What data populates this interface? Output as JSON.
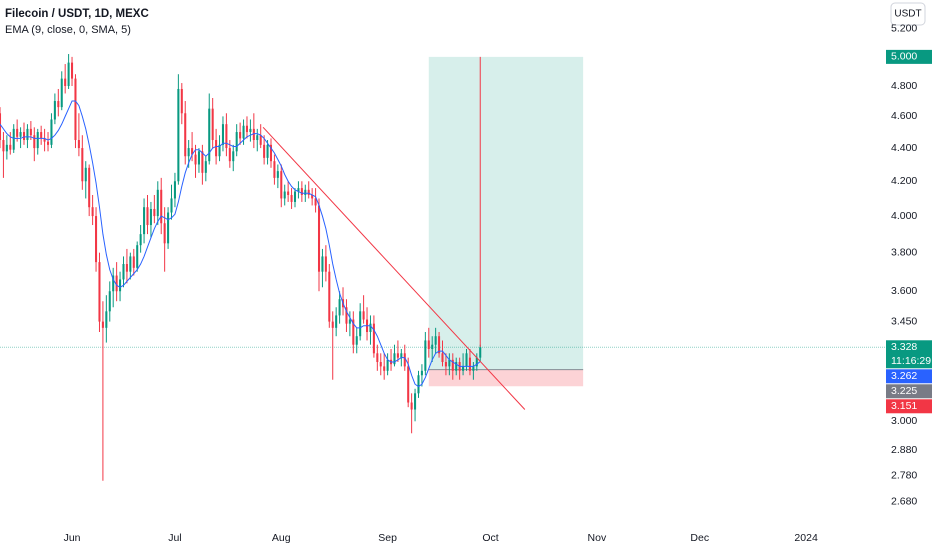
{
  "chart_data": {
    "type": "candlestick",
    "title": "Filecoin / USDT, 1D, MEXC",
    "indicator": "EMA (9, close, 0, SMA, 5)",
    "currency": "USDT",
    "countdown": "11:16:29",
    "log": true,
    "grid": false,
    "up_color": "#089981",
    "down_color": "#f23645",
    "ema_color": "#2962ff",
    "xlim": [
      0,
      258
    ],
    "xticks": [
      {
        "value": 21,
        "label": "Jun"
      },
      {
        "value": 51,
        "label": "Jul"
      },
      {
        "value": 82,
        "label": "Aug"
      },
      {
        "value": 113,
        "label": "Sep"
      },
      {
        "value": 143,
        "label": "Oct"
      },
      {
        "value": 174,
        "label": "Nov"
      },
      {
        "value": 204,
        "label": "Dec"
      },
      {
        "value": 235,
        "label": "2024"
      }
    ],
    "ylim": [
      2.576,
      5.415
    ],
    "yticks": [
      {
        "value": 5.2,
        "label": "5.200"
      },
      {
        "value": 4.8,
        "label": "4.800"
      },
      {
        "value": 4.6,
        "label": "4.600"
      },
      {
        "value": 4.4,
        "label": "4.400"
      },
      {
        "value": 4.2,
        "label": "4.200"
      },
      {
        "value": 4,
        "label": "4.000"
      },
      {
        "value": 3.8,
        "label": "3.800"
      },
      {
        "value": 3.6,
        "label": "3.600"
      },
      {
        "value": 3.45,
        "label": "3.450"
      },
      {
        "value": 3,
        "label": "3.000"
      },
      {
        "value": 2.88,
        "label": "2.880"
      },
      {
        "value": 2.78,
        "label": "2.780"
      },
      {
        "value": 2.68,
        "label": "2.680"
      }
    ],
    "candles": [
      [
        4.62,
        4.66,
        4.4,
        4.45
      ],
      [
        4.45,
        4.5,
        4.22,
        4.38
      ],
      [
        4.38,
        4.48,
        4.33,
        4.42
      ],
      [
        4.42,
        4.5,
        4.36,
        4.39
      ],
      [
        4.39,
        4.55,
        4.37,
        4.52
      ],
      [
        4.52,
        4.58,
        4.44,
        4.47
      ],
      [
        4.47,
        4.53,
        4.4,
        4.5
      ],
      [
        4.5,
        4.56,
        4.42,
        4.45
      ],
      [
        4.45,
        4.55,
        4.4,
        4.52
      ],
      [
        4.52,
        4.57,
        4.45,
        4.48
      ],
      [
        4.48,
        4.53,
        4.32,
        4.4
      ],
      [
        4.4,
        4.52,
        4.36,
        4.5
      ],
      [
        4.5,
        4.54,
        4.42,
        4.46
      ],
      [
        4.46,
        4.52,
        4.38,
        4.44
      ],
      [
        4.44,
        4.5,
        4.38,
        4.42
      ],
      [
        4.42,
        4.62,
        4.4,
        4.58
      ],
      [
        4.58,
        4.75,
        4.55,
        4.7
      ],
      [
        4.7,
        4.78,
        4.6,
        4.66
      ],
      [
        4.66,
        4.9,
        4.64,
        4.85
      ],
      [
        4.85,
        4.95,
        4.75,
        4.8
      ],
      [
        4.8,
        5.02,
        4.78,
        4.96
      ],
      [
        4.96,
        5.0,
        4.8,
        4.85
      ],
      [
        4.85,
        4.88,
        4.4,
        4.45
      ],
      [
        4.45,
        4.62,
        4.35,
        4.4
      ],
      [
        4.4,
        4.48,
        4.15,
        4.2
      ],
      [
        4.2,
        4.32,
        4.1,
        4.28
      ],
      [
        4.28,
        4.3,
        4.0,
        4.05
      ],
      [
        4.05,
        4.12,
        3.95,
        4.0
      ],
      [
        4.0,
        4.05,
        3.7,
        3.75
      ],
      [
        3.75,
        3.8,
        3.4,
        3.45
      ],
      [
        3.45,
        3.55,
        2.76,
        3.42
      ],
      [
        3.42,
        3.58,
        3.35,
        3.5
      ],
      [
        3.5,
        3.65,
        3.45,
        3.6
      ],
      [
        3.6,
        3.72,
        3.52,
        3.68
      ],
      [
        3.68,
        3.75,
        3.55,
        3.6
      ],
      [
        3.6,
        3.7,
        3.55,
        3.66
      ],
      [
        3.66,
        3.78,
        3.62,
        3.74
      ],
      [
        3.74,
        3.82,
        3.64,
        3.7
      ],
      [
        3.7,
        3.8,
        3.66,
        3.78
      ],
      [
        3.78,
        3.82,
        3.68,
        3.72
      ],
      [
        3.72,
        3.86,
        3.7,
        3.84
      ],
      [
        3.84,
        3.95,
        3.8,
        3.9
      ],
      [
        3.9,
        4.1,
        3.85,
        4.05
      ],
      [
        4.05,
        4.12,
        3.9,
        3.95
      ],
      [
        3.95,
        4.08,
        3.88,
        4.04
      ],
      [
        4.04,
        4.12,
        3.96,
        4.0
      ],
      [
        4.0,
        4.2,
        3.95,
        4.15
      ],
      [
        4.15,
        4.22,
        3.9,
        3.96
      ],
      [
        3.96,
        4.05,
        3.7,
        3.85
      ],
      [
        3.85,
        4.05,
        3.82,
        4.02
      ],
      [
        4.02,
        4.18,
        3.98,
        4.1
      ],
      [
        4.1,
        4.25,
        4.05,
        4.2
      ],
      [
        4.2,
        4.88,
        4.18,
        4.78
      ],
      [
        4.78,
        4.82,
        4.55,
        4.62
      ],
      [
        4.62,
        4.7,
        4.3,
        4.35
      ],
      [
        4.35,
        4.45,
        4.28,
        4.4
      ],
      [
        4.4,
        4.5,
        4.32,
        4.36
      ],
      [
        4.36,
        4.42,
        4.22,
        4.3
      ],
      [
        4.3,
        4.4,
        4.25,
        4.38
      ],
      [
        4.38,
        4.42,
        4.18,
        4.25
      ],
      [
        4.25,
        4.35,
        4.2,
        4.32
      ],
      [
        4.32,
        4.75,
        4.3,
        4.65
      ],
      [
        4.65,
        4.72,
        4.4,
        4.45
      ],
      [
        4.45,
        4.52,
        4.3,
        4.35
      ],
      [
        4.35,
        4.48,
        4.32,
        4.42
      ],
      [
        4.42,
        4.6,
        4.38,
        4.55
      ],
      [
        4.55,
        4.62,
        4.35,
        4.4
      ],
      [
        4.4,
        4.45,
        4.28,
        4.32
      ],
      [
        4.32,
        4.42,
        4.26,
        4.38
      ],
      [
        4.38,
        4.55,
        4.35,
        4.5
      ],
      [
        4.5,
        4.56,
        4.42,
        4.46
      ],
      [
        4.46,
        4.58,
        4.42,
        4.54
      ],
      [
        4.54,
        4.6,
        4.46,
        4.5
      ],
      [
        4.5,
        4.58,
        4.44,
        4.52
      ],
      [
        4.52,
        4.62,
        4.4,
        4.45
      ],
      [
        4.45,
        4.52,
        4.38,
        4.48
      ],
      [
        4.48,
        4.55,
        4.4,
        4.42
      ],
      [
        4.42,
        4.48,
        4.3,
        4.34
      ],
      [
        4.34,
        4.45,
        4.3,
        4.42
      ],
      [
        4.42,
        4.46,
        4.28,
        4.32
      ],
      [
        4.32,
        4.36,
        4.18,
        4.22
      ],
      [
        4.22,
        4.3,
        4.16,
        4.26
      ],
      [
        4.26,
        4.3,
        4.05,
        4.1
      ],
      [
        4.1,
        4.18,
        4.06,
        4.14
      ],
      [
        4.14,
        4.2,
        4.08,
        4.12
      ],
      [
        4.12,
        4.16,
        4.04,
        4.08
      ],
      [
        4.08,
        4.16,
        4.05,
        4.14
      ],
      [
        4.14,
        4.2,
        4.1,
        4.16
      ],
      [
        4.16,
        4.2,
        4.08,
        4.12
      ],
      [
        4.12,
        4.18,
        4.08,
        4.15
      ],
      [
        4.15,
        4.2,
        4.1,
        4.12
      ],
      [
        4.12,
        4.16,
        4.06,
        4.1
      ],
      [
        4.1,
        4.16,
        4.02,
        4.06
      ],
      [
        4.06,
        4.1,
        3.6,
        3.7
      ],
      [
        3.7,
        3.82,
        3.62,
        3.78
      ],
      [
        3.78,
        3.84,
        3.65,
        3.7
      ],
      [
        3.7,
        3.74,
        3.42,
        3.45
      ],
      [
        3.45,
        3.5,
        3.18,
        3.42
      ],
      [
        3.42,
        3.52,
        3.38,
        3.48
      ],
      [
        3.48,
        3.6,
        3.44,
        3.56
      ],
      [
        3.56,
        3.62,
        3.48,
        3.52
      ],
      [
        3.52,
        3.56,
        3.4,
        3.44
      ],
      [
        3.44,
        3.5,
        3.38,
        3.46
      ],
      [
        3.46,
        3.5,
        3.3,
        3.34
      ],
      [
        3.34,
        3.42,
        3.3,
        3.38
      ],
      [
        3.38,
        3.54,
        3.36,
        3.5
      ],
      [
        3.5,
        3.58,
        3.44,
        3.46
      ],
      [
        3.46,
        3.52,
        3.36,
        3.4
      ],
      [
        3.4,
        3.48,
        3.34,
        3.44
      ],
      [
        3.44,
        3.48,
        3.28,
        3.3
      ],
      [
        3.3,
        3.34,
        3.22,
        3.26
      ],
      [
        3.26,
        3.3,
        3.2,
        3.24
      ],
      [
        3.24,
        3.3,
        3.18,
        3.22
      ],
      [
        3.22,
        3.3,
        3.2,
        3.27
      ],
      [
        3.27,
        3.32,
        3.22,
        3.25
      ],
      [
        3.25,
        3.34,
        3.24,
        3.3
      ],
      [
        3.3,
        3.36,
        3.26,
        3.28
      ],
      [
        3.28,
        3.32,
        3.24,
        3.3
      ],
      [
        3.3,
        3.34,
        3.22,
        3.24
      ],
      [
        3.24,
        3.28,
        3.06,
        3.08
      ],
      [
        3.08,
        3.12,
        2.95,
        3.05
      ],
      [
        3.05,
        3.14,
        3.0,
        3.12
      ],
      [
        3.12,
        3.22,
        3.1,
        3.2
      ],
      [
        3.2,
        3.25,
        3.15,
        3.22
      ],
      [
        3.22,
        3.4,
        3.2,
        3.36
      ],
      [
        3.36,
        3.42,
        3.28,
        3.32
      ],
      [
        3.32,
        3.38,
        3.26,
        3.34
      ],
      [
        3.34,
        3.42,
        3.3,
        3.38
      ],
      [
        3.38,
        3.4,
        3.28,
        3.3
      ],
      [
        3.3,
        3.36,
        3.24,
        3.26
      ],
      [
        3.26,
        3.3,
        3.2,
        3.24
      ],
      [
        3.24,
        3.3,
        3.2,
        3.27
      ],
      [
        3.27,
        3.3,
        3.18,
        3.22
      ],
      [
        3.22,
        3.28,
        3.2,
        3.26
      ],
      [
        3.26,
        3.28,
        3.18,
        3.22
      ],
      [
        3.22,
        3.3,
        3.2,
        3.24
      ],
      [
        3.24,
        3.32,
        3.22,
        3.3
      ],
      [
        3.28,
        3.32,
        3.2,
        3.22
      ],
      [
        3.22,
        3.26,
        3.18,
        3.24
      ],
      [
        3.24,
        3.3,
        3.22,
        3.28
      ],
      [
        3.28,
        3.34,
        3.26,
        3.328
      ]
    ],
    "ema": [
      4.55,
      4.52,
      4.49,
      4.47,
      4.46,
      4.46,
      4.46,
      4.47,
      4.47,
      4.47,
      4.46,
      4.46,
      4.46,
      4.46,
      4.45,
      4.46,
      4.48,
      4.51,
      4.55,
      4.6,
      4.65,
      4.7,
      4.7,
      4.67,
      4.6,
      4.52,
      4.42,
      4.31,
      4.19,
      4.05,
      3.9,
      3.79,
      3.71,
      3.66,
      3.63,
      3.62,
      3.63,
      3.65,
      3.67,
      3.69,
      3.71,
      3.74,
      3.78,
      3.83,
      3.88,
      3.93,
      3.97,
      4.0,
      3.99,
      3.98,
      3.99,
      4.01,
      4.08,
      4.17,
      4.25,
      4.31,
      4.36,
      4.39,
      4.39,
      4.37,
      4.35,
      4.37,
      4.4,
      4.41,
      4.41,
      4.43,
      4.43,
      4.42,
      4.41,
      4.41,
      4.43,
      4.45,
      4.47,
      4.48,
      4.49,
      4.49,
      4.48,
      4.46,
      4.43,
      4.4,
      4.37,
      4.33,
      4.29,
      4.24,
      4.2,
      4.17,
      4.15,
      4.14,
      4.13,
      4.13,
      4.13,
      4.12,
      4.11,
      4.06,
      4.0,
      3.93,
      3.84,
      3.74,
      3.66,
      3.59,
      3.54,
      3.5,
      3.47,
      3.44,
      3.42,
      3.42,
      3.43,
      3.43,
      3.43,
      3.41,
      3.38,
      3.34,
      3.3,
      3.27,
      3.26,
      3.26,
      3.27,
      3.28,
      3.28,
      3.25,
      3.2,
      3.16,
      3.15,
      3.16,
      3.19,
      3.23,
      3.27,
      3.3,
      3.31,
      3.31,
      3.29,
      3.27,
      3.26,
      3.25,
      3.24,
      3.24,
      3.24,
      3.24,
      3.24,
      3.25,
      3.262
    ],
    "position": {
      "start": 125,
      "end": 170,
      "target": {
        "value": 5,
        "label": "5.000"
      },
      "entry": 3.225,
      "stop": 3.151
    },
    "trendline": [
      [
        76.7,
        4.53
      ],
      [
        153,
        3.05
      ]
    ],
    "vline": [
      [
        140,
        5
      ],
      [
        140,
        3.33
      ]
    ]
  }
}
